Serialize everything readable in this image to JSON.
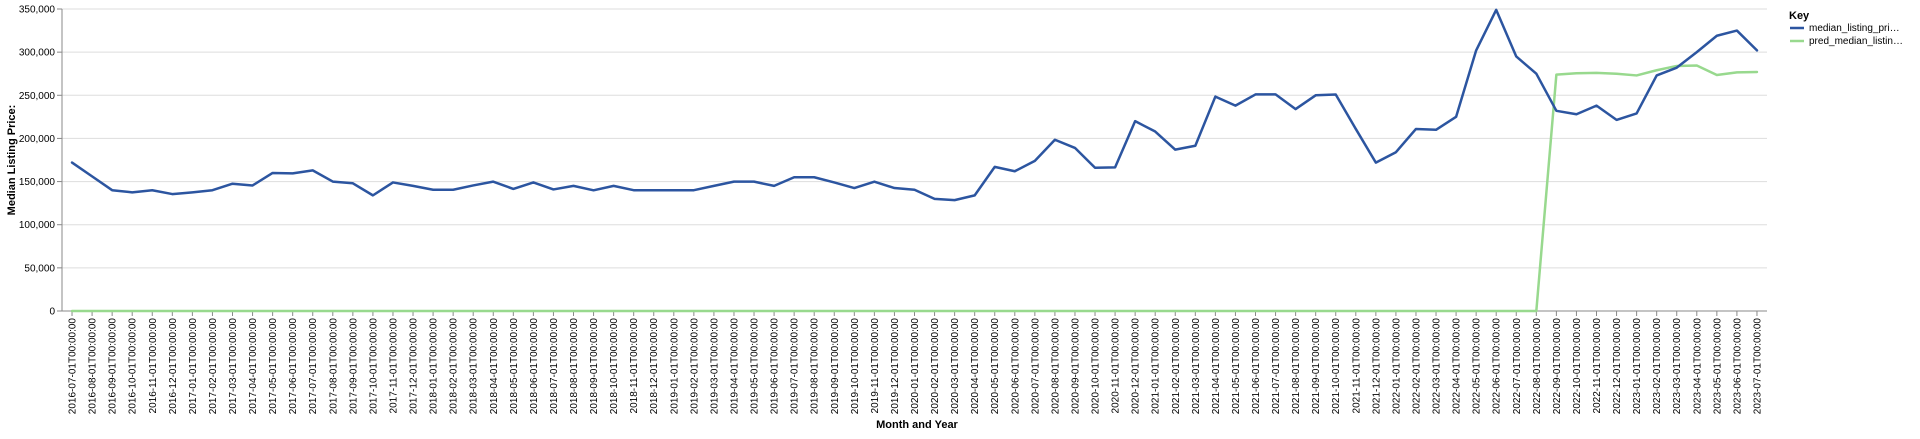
{
  "chart_data": {
    "type": "line",
    "xlabel": "Month and Year",
    "ylabel": "Median Listing Price:",
    "ylim": [
      0,
      350000
    ],
    "yticks": [
      "0",
      "50,000",
      "100,000",
      "150,000",
      "200,000",
      "250,000",
      "300,000",
      "350,000"
    ],
    "grid": true,
    "legend": {
      "title": "Key",
      "position": "top-right"
    },
    "x": [
      "2016-07-01T00:00:00",
      "2016-08-01T00:00:00",
      "2016-09-01T00:00:00",
      "2016-10-01T00:00:00",
      "2016-11-01T00:00:00",
      "2016-12-01T00:00:00",
      "2017-01-01T00:00:00",
      "2017-02-01T00:00:00",
      "2017-03-01T00:00:00",
      "2017-04-01T00:00:00",
      "2017-05-01T00:00:00",
      "2017-06-01T00:00:00",
      "2017-07-01T00:00:00",
      "2017-08-01T00:00:00",
      "2017-09-01T00:00:00",
      "2017-10-01T00:00:00",
      "2017-11-01T00:00:00",
      "2017-12-01T00:00:00",
      "2018-01-01T00:00:00",
      "2018-02-01T00:00:00",
      "2018-03-01T00:00:00",
      "2018-04-01T00:00:00",
      "2018-05-01T00:00:00",
      "2018-06-01T00:00:00",
      "2018-07-01T00:00:00",
      "2018-08-01T00:00:00",
      "2018-09-01T00:00:00",
      "2018-10-01T00:00:00",
      "2018-11-01T00:00:00",
      "2018-12-01T00:00:00",
      "2019-01-01T00:00:00",
      "2019-02-01T00:00:00",
      "2019-03-01T00:00:00",
      "2019-04-01T00:00:00",
      "2019-05-01T00:00:00",
      "2019-06-01T00:00:00",
      "2019-07-01T00:00:00",
      "2019-08-01T00:00:00",
      "2019-09-01T00:00:00",
      "2019-10-01T00:00:00",
      "2019-11-01T00:00:00",
      "2019-12-01T00:00:00",
      "2020-01-01T00:00:00",
      "2020-02-01T00:00:00",
      "2020-03-01T00:00:00",
      "2020-04-01T00:00:00",
      "2020-05-01T00:00:00",
      "2020-06-01T00:00:00",
      "2020-07-01T00:00:00",
      "2020-08-01T00:00:00",
      "2020-09-01T00:00:00",
      "2020-10-01T00:00:00",
      "2020-11-01T00:00:00",
      "2020-12-01T00:00:00",
      "2021-01-01T00:00:00",
      "2021-02-01T00:00:00",
      "2021-03-01T00:00:00",
      "2021-04-01T00:00:00",
      "2021-05-01T00:00:00",
      "2021-06-01T00:00:00",
      "2021-07-01T00:00:00",
      "2021-08-01T00:00:00",
      "2021-09-01T00:00:00",
      "2021-10-01T00:00:00",
      "2021-11-01T00:00:00",
      "2021-12-01T00:00:00",
      "2022-01-01T00:00:00",
      "2022-02-01T00:00:00",
      "2022-03-01T00:00:00",
      "2022-04-01T00:00:00",
      "2022-05-01T00:00:00",
      "2022-06-01T00:00:00",
      "2022-07-01T00:00:00",
      "2022-08-01T00:00:00",
      "2022-09-01T00:00:00",
      "2022-10-01T00:00:00",
      "2022-11-01T00:00:00",
      "2022-12-01T00:00:00",
      "2023-01-01T00:00:00",
      "2023-02-01T00:00:00",
      "2023-03-01T00:00:00",
      "2023-04-01T00:00:00",
      "2023-05-01T00:00:00",
      "2023-06-01T00:00:00",
      "2023-07-01T00:00:00"
    ],
    "series": [
      {
        "name": "median_listing_pri…",
        "color": "#2c55a0",
        "values": [
          172000,
          156000,
          140000,
          137500,
          139900,
          135500,
          137500,
          140000,
          147500,
          145500,
          160000,
          159500,
          163000,
          150000,
          148000,
          134000,
          149000,
          145000,
          140500,
          140500,
          145500,
          149900,
          141500,
          149000,
          140900,
          145000,
          139900,
          145000,
          140000,
          140000,
          140000,
          140000,
          145000,
          149900,
          149900,
          145000,
          155000,
          155000,
          149000,
          142500,
          149900,
          142500,
          140500,
          130000,
          128500,
          134000,
          167000,
          162000,
          174000,
          198500,
          189000,
          166000,
          166500,
          220000,
          208000,
          187000,
          191500,
          248500,
          238000,
          251000,
          251000,
          234000,
          250000,
          250900,
          211000,
          172000,
          184000,
          211000,
          210000,
          225000,
          302000,
          349000,
          295000,
          275000,
          232000,
          228000,
          238000,
          221500,
          229000,
          273000,
          282000,
          300000,
          319000,
          325000,
          302000
        ]
      },
      {
        "name": "pred_median_listin…",
        "color": "#98d98e",
        "values": [
          0,
          0,
          0,
          0,
          0,
          0,
          0,
          0,
          0,
          0,
          0,
          0,
          0,
          0,
          0,
          0,
          0,
          0,
          0,
          0,
          0,
          0,
          0,
          0,
          0,
          0,
          0,
          0,
          0,
          0,
          0,
          0,
          0,
          0,
          0,
          0,
          0,
          0,
          0,
          0,
          0,
          0,
          0,
          0,
          0,
          0,
          0,
          0,
          0,
          0,
          0,
          0,
          0,
          0,
          0,
          0,
          0,
          0,
          0,
          0,
          0,
          0,
          0,
          0,
          0,
          0,
          0,
          0,
          0,
          0,
          0,
          0,
          0,
          0,
          274000,
          275500,
          276000,
          275000,
          273000,
          279000,
          284000,
          284500,
          273500,
          276500,
          277000
        ]
      }
    ]
  }
}
